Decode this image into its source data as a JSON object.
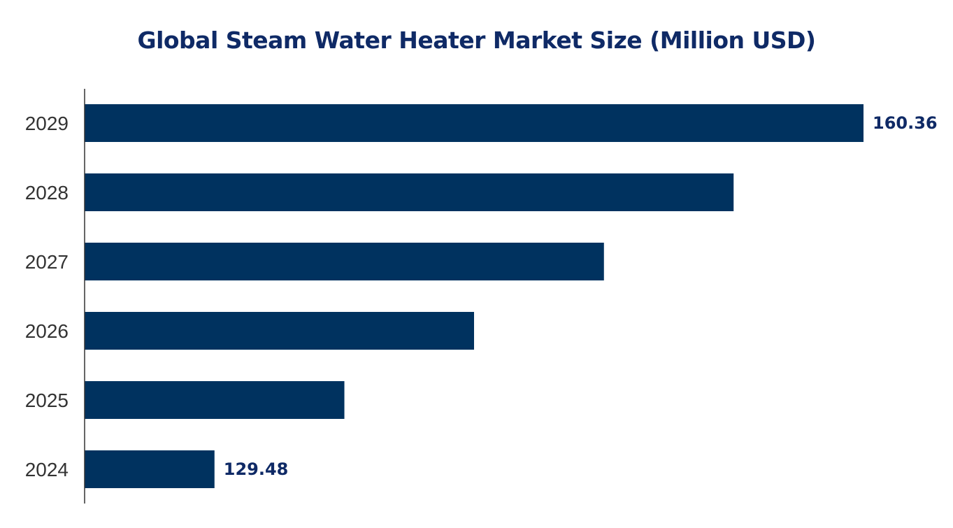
{
  "chart_data": {
    "type": "bar",
    "orientation": "horizontal",
    "title": "Global Steam Water Heater Market Size (Million USD)",
    "xlabel": "",
    "ylabel": "",
    "categories": [
      "2029",
      "2028",
      "2027",
      "2026",
      "2025",
      "2024"
    ],
    "values": [
      160.36,
      154.18,
      148.01,
      141.83,
      135.66,
      129.48
    ],
    "data_labels": {
      "2029": "160.36",
      "2024": "129.48"
    },
    "xlim": [
      123.3,
      160.36
    ],
    "grid": false,
    "bar_color": "#00325f",
    "label_color": "#0f2a66"
  }
}
